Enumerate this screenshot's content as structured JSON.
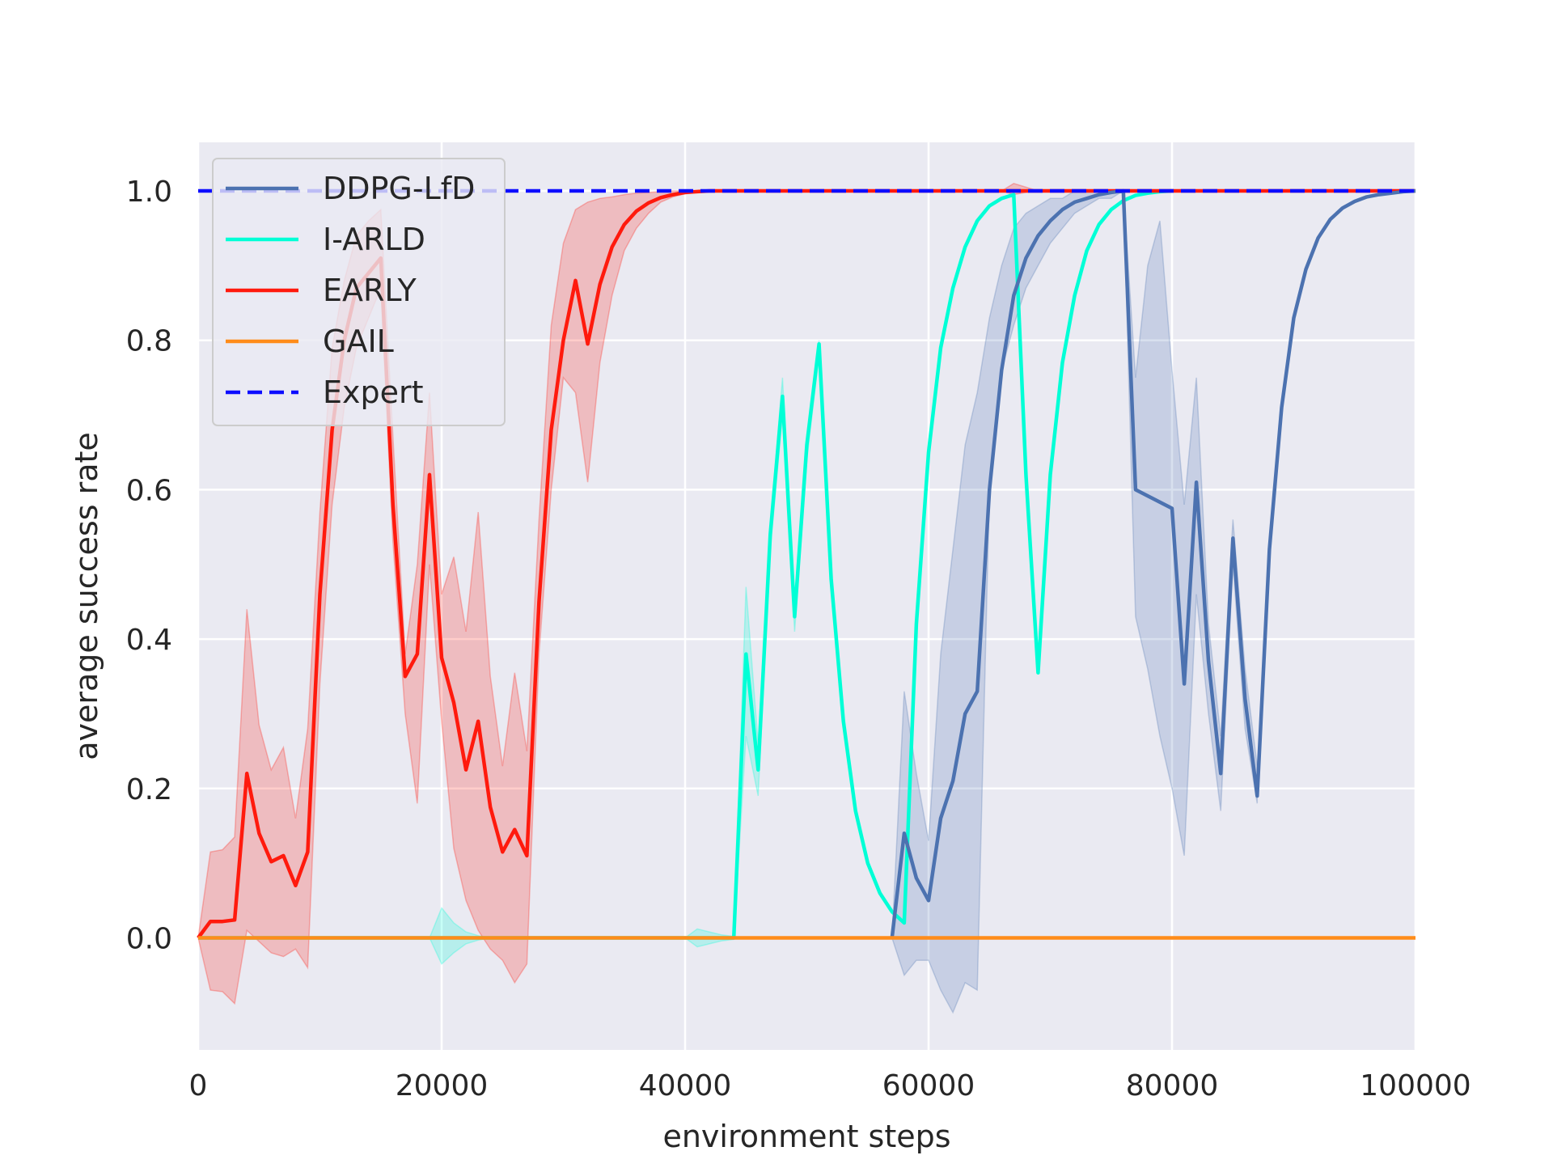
{
  "chart_data": {
    "type": "line",
    "title": "",
    "xlabel": "environment steps",
    "ylabel": "average success rate",
    "xlim": [
      0,
      100000
    ],
    "ylim": [
      -0.15,
      1.065
    ],
    "xticks": [
      0,
      20000,
      40000,
      60000,
      80000,
      100000
    ],
    "xtick_labels": [
      "0",
      "20000",
      "40000",
      "60000",
      "80000",
      "100000"
    ],
    "yticks": [
      0.0,
      0.2,
      0.4,
      0.6,
      0.8,
      1.0
    ],
    "ytick_labels": [
      "0.0",
      "0.2",
      "0.4",
      "0.6",
      "0.8",
      "1.0"
    ],
    "grid": true,
    "legend_position": "top-left",
    "background": "#eaeaf2",
    "series": [
      {
        "name": "DDPG-LfD",
        "color": "#4c72b0",
        "dash": "solid",
        "band": {
          "x": [
            57000,
            58000,
            59000,
            60000,
            61000,
            62000,
            63000,
            64000,
            65000,
            66000,
            67000,
            68000,
            69000,
            70000,
            71000,
            72000,
            73000,
            74000,
            75000,
            76000,
            77000,
            78000,
            79000,
            80000,
            81000,
            82000,
            83000,
            84000,
            85000,
            86000,
            87000
          ],
          "upper": [
            0.0,
            0.33,
            0.22,
            0.13,
            0.38,
            0.52,
            0.66,
            0.73,
            0.83,
            0.9,
            0.95,
            0.97,
            0.98,
            0.99,
            0.99,
            1.0,
            1.0,
            1.0,
            1.0,
            1.0,
            0.75,
            0.9,
            0.96,
            0.76,
            0.58,
            0.75,
            0.42,
            0.27,
            0.56,
            0.36,
            0.23
          ],
          "lower": [
            0.0,
            -0.05,
            -0.03,
            -0.03,
            -0.07,
            -0.1,
            -0.06,
            -0.07,
            0.6,
            0.76,
            0.82,
            0.87,
            0.9,
            0.93,
            0.95,
            0.97,
            0.98,
            0.99,
            0.99,
            1.0,
            0.43,
            0.36,
            0.27,
            0.2,
            0.11,
            0.46,
            0.3,
            0.17,
            0.5,
            0.28,
            0.18
          ]
        },
        "x": [
          57000,
          58000,
          59000,
          60000,
          61000,
          62000,
          63000,
          64000,
          65000,
          66000,
          67000,
          68000,
          69000,
          70000,
          71000,
          72000,
          73000,
          74000,
          75000,
          76000,
          77000,
          80000,
          81000,
          82000,
          83000,
          84000,
          85000,
          86000,
          87000,
          88000,
          89000,
          90000,
          91000,
          92000,
          93000,
          94000,
          95000,
          96000,
          97000,
          98000,
          99000,
          100000
        ],
        "y": [
          0.0,
          0.14,
          0.08,
          0.05,
          0.16,
          0.21,
          0.3,
          0.33,
          0.6,
          0.76,
          0.86,
          0.91,
          0.94,
          0.96,
          0.975,
          0.985,
          0.99,
          0.995,
          0.998,
          1.0,
          0.6,
          0.575,
          0.34,
          0.61,
          0.37,
          0.22,
          0.535,
          0.32,
          0.19,
          0.52,
          0.71,
          0.83,
          0.895,
          0.937,
          0.962,
          0.977,
          0.986,
          0.992,
          0.995,
          0.997,
          0.999,
          1.0
        ]
      },
      {
        "name": "I-ARLD",
        "color": "#00ffd6",
        "dash": "solid",
        "band": {
          "x": [
            19000,
            20000,
            21000,
            22000,
            23000,
            24000,
            25000,
            40000,
            41000,
            42000,
            43000,
            44000,
            45000,
            46000,
            47000,
            48000,
            49000,
            50000,
            51000
          ],
          "upper": [
            0.0,
            0.04,
            0.02,
            0.008,
            0.003,
            0.0,
            0.0,
            0.0,
            0.012,
            0.008,
            0.004,
            0.002,
            0.47,
            0.26,
            0.55,
            0.75,
            0.45,
            0.67,
            0.8
          ],
          "lower": [
            0.0,
            -0.035,
            -0.02,
            -0.008,
            -0.003,
            0.0,
            0.0,
            0.0,
            -0.012,
            -0.008,
            -0.004,
            -0.002,
            0.27,
            0.19,
            0.52,
            0.7,
            0.41,
            0.64,
            0.78
          ]
        },
        "x": [
          0,
          44000,
          45000,
          46000,
          47000,
          48000,
          49000,
          50000,
          51000,
          52000,
          53000,
          54000,
          55000,
          56000,
          57000,
          58000,
          59000,
          60000,
          61000,
          62000,
          63000,
          64000,
          65000,
          66000,
          67000,
          68000,
          69000,
          70000,
          71000,
          72000,
          73000,
          74000,
          75000,
          76000,
          77000,
          78000,
          79000,
          80000
        ],
        "y": [
          0.0,
          0.0,
          0.38,
          0.225,
          0.54,
          0.725,
          0.43,
          0.66,
          0.795,
          0.48,
          0.29,
          0.17,
          0.1,
          0.06,
          0.035,
          0.02,
          0.42,
          0.65,
          0.79,
          0.87,
          0.925,
          0.96,
          0.98,
          0.99,
          0.995,
          0.62,
          0.355,
          0.62,
          0.77,
          0.86,
          0.92,
          0.955,
          0.975,
          0.987,
          0.994,
          0.997,
          0.999,
          1.0
        ]
      },
      {
        "name": "EARLY",
        "color": "#ff1a0d",
        "dash": "solid",
        "band": {
          "x": [
            0,
            1000,
            2000,
            3000,
            4000,
            5000,
            6000,
            7000,
            8000,
            9000,
            10000,
            11000,
            12000,
            13000,
            14000,
            15000,
            16000,
            17000,
            18000,
            19000,
            20000,
            21000,
            22000,
            23000,
            24000,
            25000,
            26000,
            27000,
            28000,
            29000,
            30000,
            31000,
            32000,
            33000,
            34000,
            35000,
            36000,
            37000,
            38000,
            39000,
            40000,
            41000,
            42000,
            43000,
            44000,
            45000,
            50000,
            60000,
            65000,
            66000,
            67000,
            68000,
            69000,
            70000,
            100000
          ],
          "upper": [
            0.0,
            0.115,
            0.118,
            0.135,
            0.44,
            0.285,
            0.225,
            0.255,
            0.16,
            0.28,
            0.57,
            0.79,
            0.88,
            0.94,
            0.96,
            0.975,
            0.67,
            0.38,
            0.5,
            0.73,
            0.46,
            0.51,
            0.41,
            0.57,
            0.35,
            0.23,
            0.355,
            0.25,
            0.56,
            0.82,
            0.93,
            0.975,
            0.985,
            0.99,
            0.992,
            0.995,
            0.997,
            0.998,
            0.999,
            1.0,
            1.0,
            1.0,
            1.0,
            1.0,
            1.0,
            1.0,
            1.0,
            1.0,
            1.0,
            1.0,
            1.01,
            1.005,
            1.0,
            1.0,
            1.0
          ],
          "lower": [
            0.0,
            -0.07,
            -0.072,
            -0.088,
            0.01,
            -0.005,
            -0.02,
            -0.025,
            -0.015,
            -0.04,
            0.34,
            0.58,
            0.71,
            0.79,
            0.83,
            0.87,
            0.53,
            0.3,
            0.18,
            0.5,
            0.29,
            0.12,
            0.05,
            0.01,
            -0.015,
            -0.03,
            -0.06,
            -0.035,
            0.38,
            0.6,
            0.75,
            0.73,
            0.61,
            0.77,
            0.86,
            0.92,
            0.95,
            0.97,
            0.985,
            0.992,
            0.996,
            0.998,
            1.0,
            1.0,
            1.0,
            1.0,
            1.0,
            1.0,
            1.0,
            1.0,
            0.995,
            0.998,
            1.0,
            1.0,
            1.0
          ]
        },
        "x": [
          0,
          1000,
          2000,
          3000,
          4000,
          5000,
          6000,
          7000,
          8000,
          9000,
          10000,
          11000,
          12000,
          13000,
          14000,
          15000,
          16000,
          17000,
          18000,
          19000,
          20000,
          21000,
          22000,
          23000,
          24000,
          25000,
          26000,
          27000,
          28000,
          29000,
          30000,
          31000,
          32000,
          33000,
          34000,
          35000,
          36000,
          37000,
          38000,
          39000,
          40000,
          41000,
          42000,
          43000,
          45000,
          100000
        ],
        "y": [
          0.0,
          0.022,
          0.022,
          0.024,
          0.22,
          0.14,
          0.102,
          0.11,
          0.07,
          0.115,
          0.46,
          0.68,
          0.8,
          0.87,
          0.89,
          0.91,
          0.58,
          0.35,
          0.38,
          0.62,
          0.375,
          0.315,
          0.225,
          0.29,
          0.175,
          0.115,
          0.145,
          0.11,
          0.45,
          0.68,
          0.8,
          0.88,
          0.795,
          0.875,
          0.925,
          0.955,
          0.973,
          0.984,
          0.991,
          0.995,
          0.998,
          0.999,
          1.0,
          1.0,
          1.0,
          1.0
        ]
      },
      {
        "name": "GAIL",
        "color": "#ff8c1a",
        "dash": "solid",
        "x": [
          0,
          100000
        ],
        "y": [
          0.0,
          0.0
        ]
      },
      {
        "name": "Expert",
        "color": "#0d0dff",
        "dash": "dashed",
        "x": [
          0,
          100000
        ],
        "y": [
          1.0,
          1.0
        ]
      }
    ]
  }
}
